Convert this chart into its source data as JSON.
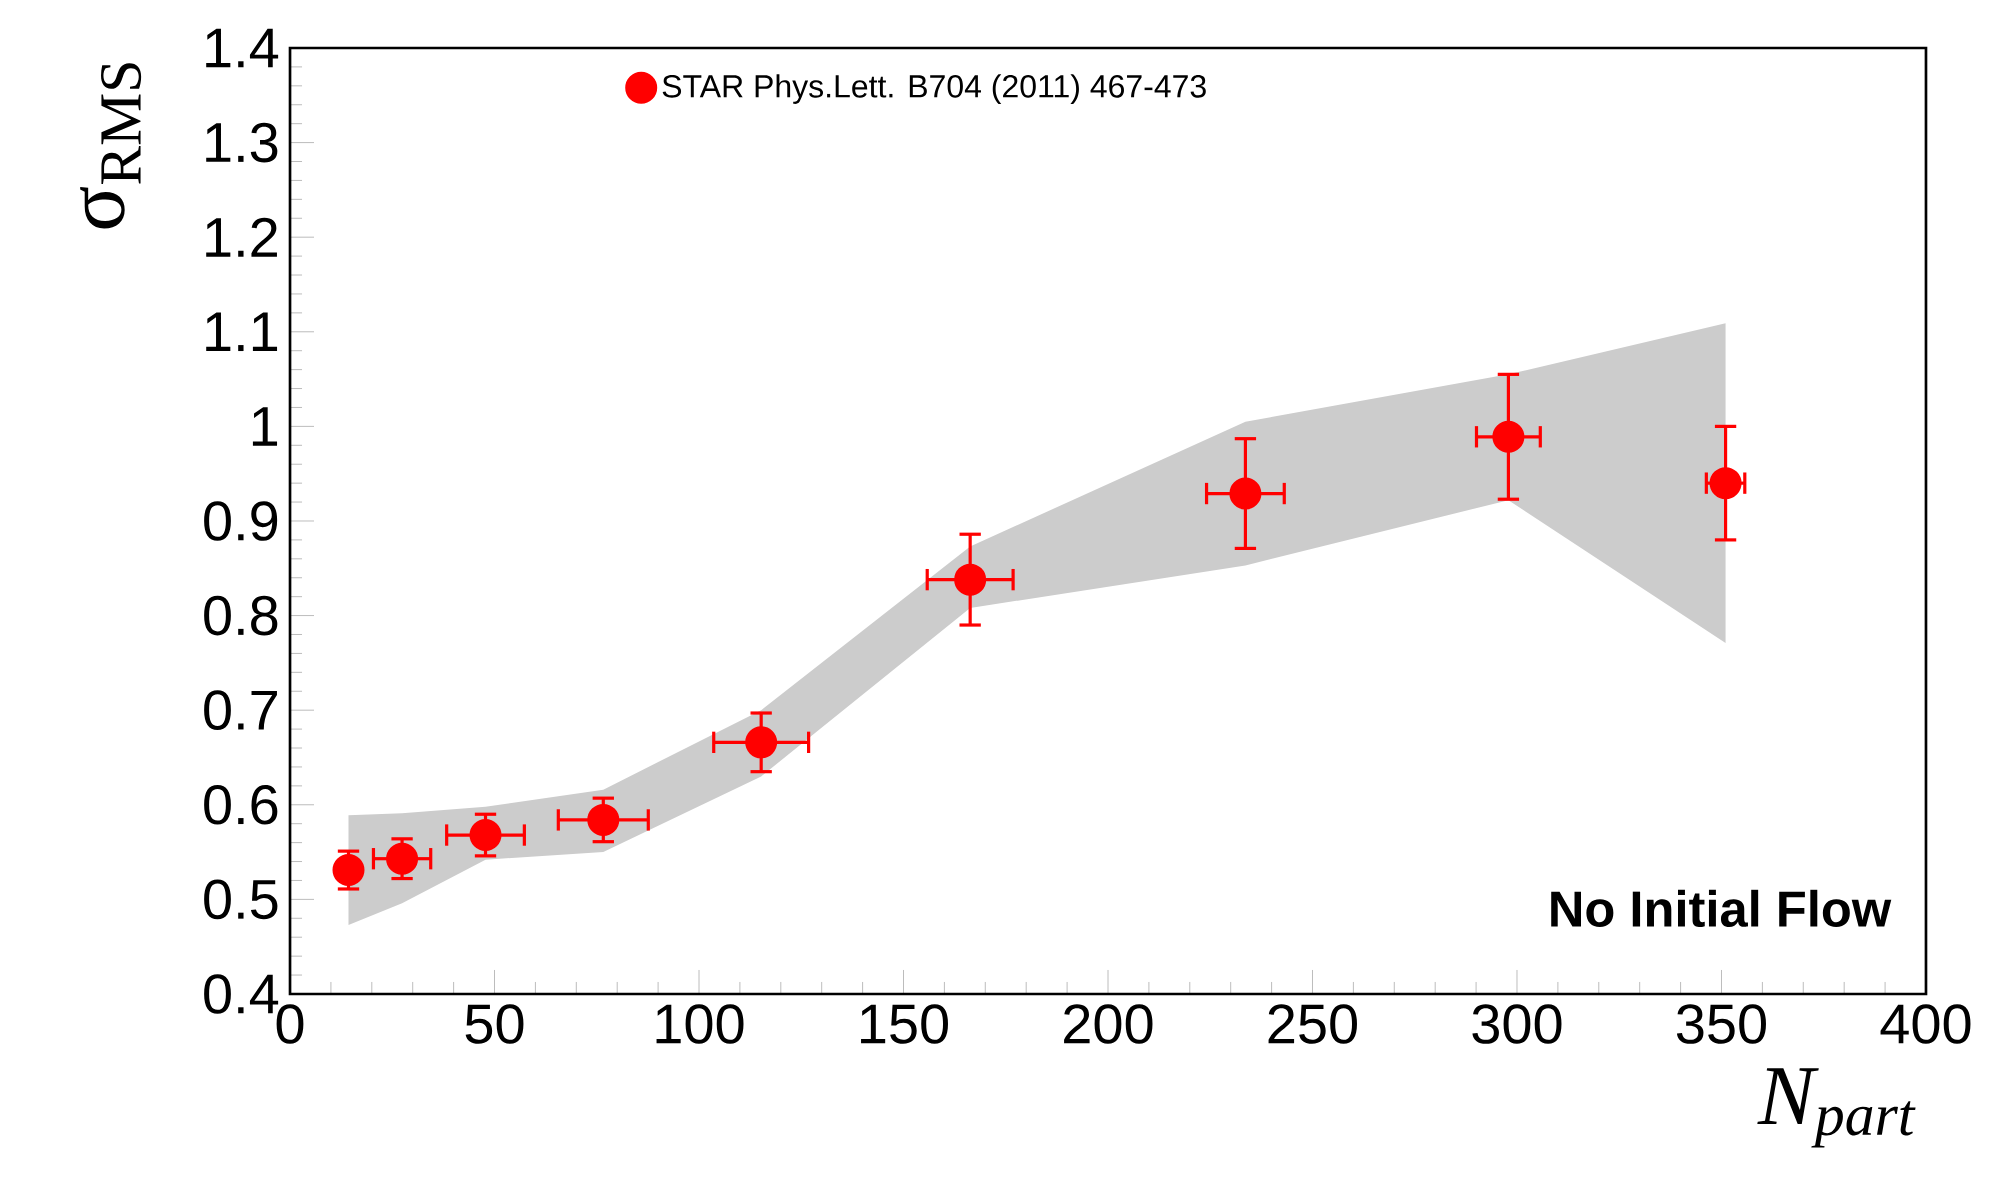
{
  "chart_data": {
    "type": "scatter",
    "xlabel": "N$_{part}$",
    "ylabel": "σ$_{RMS}$",
    "xlim": [
      0,
      400
    ],
    "ylim": [
      0.4,
      1.4
    ],
    "xticks": [
      0,
      50,
      100,
      150,
      200,
      250,
      300,
      350,
      400
    ],
    "yticks": [
      0.4,
      0.5,
      0.6,
      0.7,
      0.8,
      0.9,
      1,
      1.1,
      1.2,
      1.3,
      1.4
    ],
    "legend": "top left",
    "annotations": [
      "No Initial Flow"
    ],
    "series": [
      {
        "name": "STAR  Phys.Lett. B704 (2011) 467-473",
        "color": "#ff0000",
        "x": [
          14.3,
          27.4,
          47.8,
          76.6,
          115.2,
          166.3,
          233.6,
          297.9,
          351
        ],
        "values": [
          0.531,
          0.543,
          0.568,
          0.584,
          0.666,
          0.838,
          0.929,
          0.989,
          0.94
        ],
        "errors": [
          0.02,
          0.021,
          0.022,
          0.023,
          0.031,
          0.048,
          0.058,
          0.066,
          0.06
        ],
        "xerrors": [
          null,
          7,
          9.5,
          11,
          11.6,
          10.5,
          9.5,
          7.8,
          4.7
        ],
        "lower": [
          0.473,
          0.496,
          0.542,
          0.55,
          0.63,
          0.808,
          0.853,
          0.922,
          0.771
        ],
        "upper": [
          0.589,
          0.591,
          0.598,
          0.616,
          0.7,
          0.873,
          1.005,
          1.055,
          1.109
        ]
      }
    ]
  }
}
